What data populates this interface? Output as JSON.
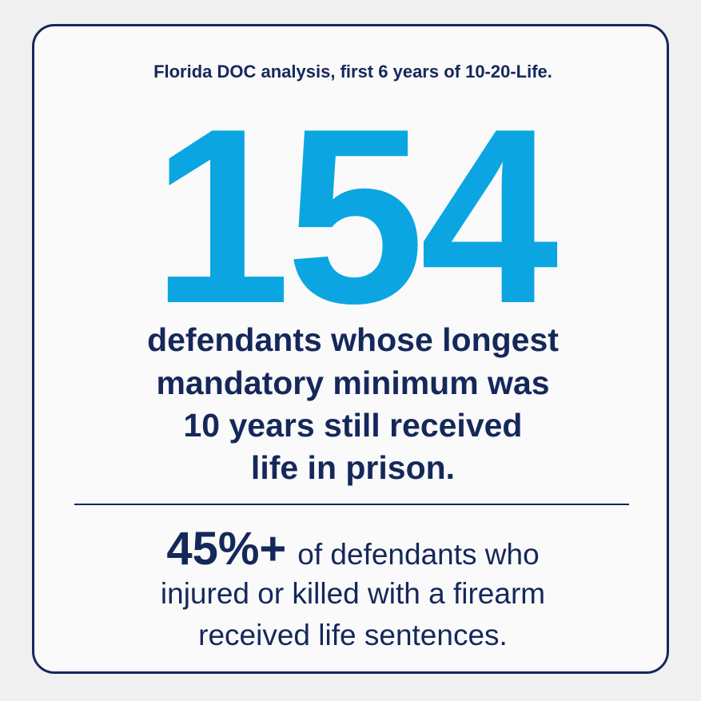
{
  "header": {
    "title": "Florida DOC analysis, first 6 years of 10-20-Life."
  },
  "main_stat": {
    "number": "154",
    "description_lines": [
      "defendants whose longest",
      "mandatory minimum was",
      "10 years still received",
      "life in prison."
    ]
  },
  "secondary_stat": {
    "number": "45%+",
    "description_lines": [
      "of defendants who",
      "injured or killed with a firearm",
      "received life sentences."
    ]
  }
}
